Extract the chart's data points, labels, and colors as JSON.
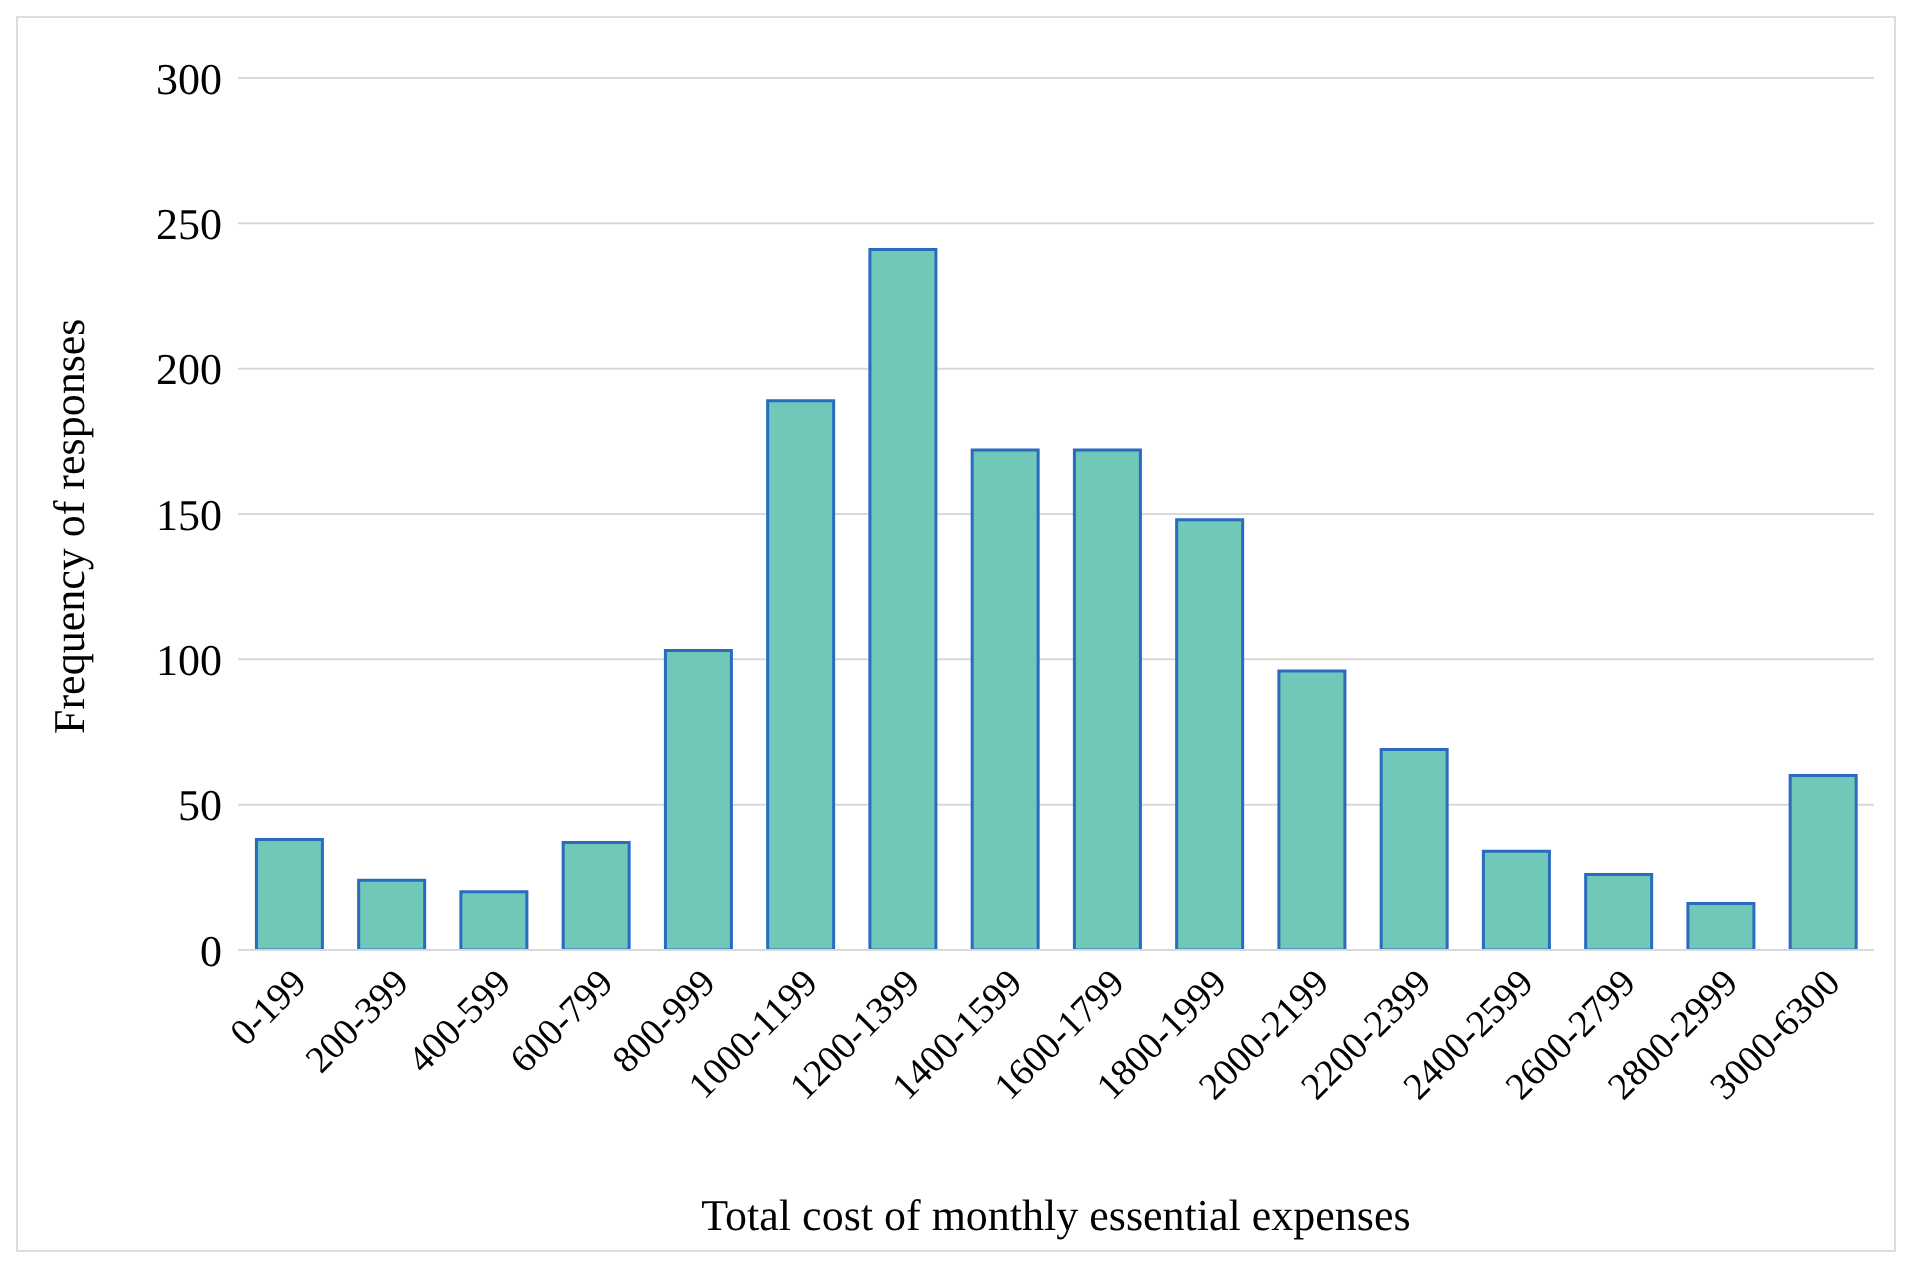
{
  "chart_data": {
    "type": "bar",
    "xlabel": "Total cost of monthly essential expenses",
    "ylabel": "Frequency of responses",
    "categories": [
      "0-199",
      "200-399",
      "400-599",
      "600-799",
      "800-999",
      "1000-1199",
      "1200-1399",
      "1400-1599",
      "1600-1799",
      "1800-1999",
      "2000-2199",
      "2200-2399",
      "2400-2599",
      "2600-2799",
      "2800-2999",
      "3000-6300"
    ],
    "values": [
      38,
      24,
      20,
      37,
      103,
      189,
      241,
      172,
      172,
      148,
      96,
      69,
      34,
      26,
      16,
      60
    ],
    "color": "#70c8b8",
    "ylim": [
      0,
      300
    ],
    "yticks": [
      0,
      50,
      100,
      150,
      200,
      250,
      300
    ],
    "grid": "y"
  }
}
